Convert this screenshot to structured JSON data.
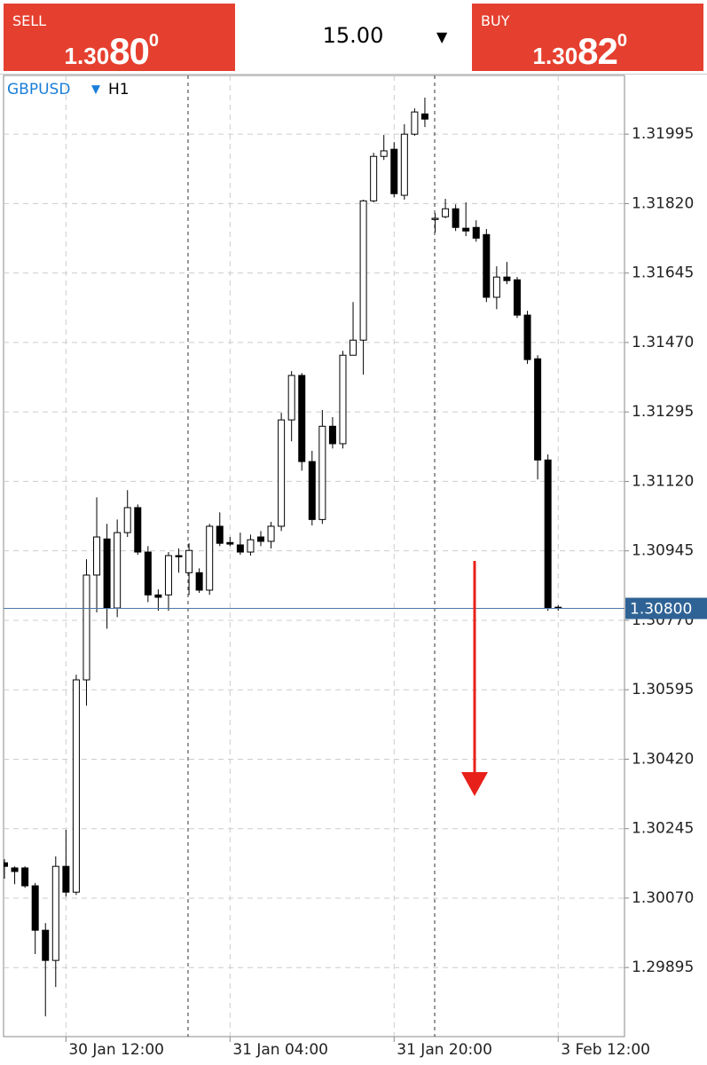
{
  "header": {
    "sell": {
      "label": "SELL",
      "price_prefix": "1.30",
      "price_big": "80",
      "price_sup": "0"
    },
    "volume": "15.00",
    "buy": {
      "label": "BUY",
      "price_prefix": "1.30",
      "price_big": "82",
      "price_sup": "0"
    }
  },
  "chart_data": {
    "type": "candlestick",
    "symbol": "GBPUSD",
    "timeframe": "H1",
    "categories": [
      null,
      null,
      null,
      null,
      null,
      null,
      "30 Jan 12:00",
      null,
      null,
      null,
      null,
      null,
      null,
      null,
      null,
      null,
      null,
      null,
      null,
      null,
      null,
      null,
      "31 Jan 04:00",
      null,
      null,
      null,
      null,
      null,
      null,
      null,
      null,
      null,
      null,
      null,
      null,
      null,
      null,
      null,
      "31 Jan 20:00",
      null,
      null,
      null,
      null,
      null,
      null,
      null,
      null,
      null,
      null,
      null,
      null,
      null,
      null,
      null,
      "3 Feb 12:00"
    ],
    "open": [
      1.30159,
      1.30146,
      1.30146,
      1.30101,
      1.29989,
      1.29913,
      1.3015,
      1.30085,
      1.3062,
      1.30884,
      1.30975,
      1.30801,
      1.30991,
      1.31054,
      1.30942,
      1.30834,
      1.30834,
      1.30933,
      1.3089,
      1.3089,
      1.30846,
      1.31007,
      1.30966,
      1.3096,
      1.30942,
      1.3098,
      1.30969,
      1.31007,
      1.31275,
      1.31387,
      1.3117,
      1.31024,
      1.31259,
      1.31215,
      1.31438,
      1.31476,
      1.31827,
      1.31939,
      1.31957,
      1.31841,
      1.31995,
      1.32046,
      1.3178,
      1.31787,
      1.31807,
      1.31758,
      1.3176,
      1.31742,
      1.31584,
      1.31635,
      1.31628,
      1.31539,
      1.31429,
      1.31174,
      1.30803
    ],
    "high": [
      1.30168,
      1.3015,
      1.3015,
      1.30108,
      1.30007,
      1.30175,
      1.30242,
      1.30633,
      1.30924,
      1.3108,
      1.31013,
      1.31024,
      1.31098,
      1.31062,
      1.30957,
      1.30848,
      1.30942,
      1.30951,
      1.30964,
      1.30901,
      1.31013,
      1.31042,
      1.3098,
      1.30991,
      1.30986,
      1.30995,
      1.31018,
      1.31293,
      1.31398,
      1.31393,
      1.31197,
      1.313,
      1.31282,
      1.31449,
      1.31572,
      1.3183,
      1.31948,
      1.31993,
      1.31975,
      1.3202,
      1.3206,
      1.32087,
      1.31796,
      1.31832,
      1.31818,
      1.31823,
      1.31778,
      1.31756,
      1.31662,
      1.31673,
      1.31635,
      1.3155,
      1.31438,
      1.31188,
      1.30808
    ],
    "low": [
      1.30119,
      1.30105,
      1.30096,
      1.29929,
      1.29772,
      1.29846,
      1.30074,
      1.30078,
      1.30555,
      1.3079,
      1.30749,
      1.30778,
      1.3098,
      1.30935,
      1.30816,
      1.30794,
      1.30794,
      1.3089,
      1.30834,
      1.30839,
      1.30834,
      1.30957,
      1.30957,
      1.30935,
      1.30933,
      1.30957,
      1.30951,
      1.30995,
      1.31221,
      1.31147,
      1.31009,
      1.31013,
      1.31203,
      1.31203,
      1.31438,
      1.31389,
      1.31823,
      1.3193,
      1.31836,
      1.3183,
      1.31991,
      1.32013,
      1.31747,
      1.31783,
      1.31751,
      1.31738,
      1.31724,
      1.31572,
      1.31554,
      1.31617,
      1.31532,
      1.31416,
      1.31125,
      1.30794,
      1.30794
    ],
    "close": [
      1.3015,
      1.30137,
      1.30101,
      1.29989,
      1.29913,
      1.3015,
      1.30085,
      1.3062,
      1.30884,
      1.3098,
      1.30801,
      1.30991,
      1.31054,
      1.30942,
      1.30834,
      1.30828,
      1.30933,
      1.3093,
      1.30946,
      1.30846,
      1.31007,
      1.30964,
      1.30962,
      1.30942,
      1.30973,
      1.30969,
      1.31007,
      1.31275,
      1.31387,
      1.3117,
      1.31024,
      1.31259,
      1.31215,
      1.31438,
      1.31476,
      1.31827,
      1.31939,
      1.31953,
      1.31845,
      1.31995,
      1.32051,
      1.32033,
      1.31783,
      1.31807,
      1.3176,
      1.31751,
      1.31733,
      1.31584,
      1.31635,
      1.31626,
      1.31539,
      1.31427,
      1.31174,
      1.30801,
      1.308
    ],
    "up_color": "#ffffff",
    "down_color": "#000000",
    "ylim": [
      1.29721,
      1.32143
    ],
    "yticks": [
      1.31995,
      {
        "value": 1.3182,
        "label": "1.31820"
      },
      1.31645,
      {
        "value": 1.3147,
        "label": "1.31470"
      },
      1.31295,
      {
        "value": 1.3112,
        "label": "1.31120"
      },
      1.30945,
      {
        "value": 1.3077,
        "label": "1.30770"
      },
      1.30595,
      {
        "value": 1.3042,
        "label": "1.30420"
      },
      1.30245,
      {
        "value": 1.3007,
        "label": "1.30070"
      },
      1.29895
    ],
    "current_price": {
      "value": 1.308,
      "label": "1.30800"
    },
    "grid": true
  }
}
